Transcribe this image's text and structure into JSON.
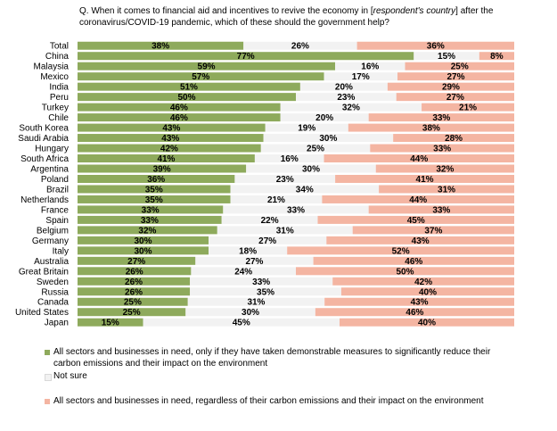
{
  "question": {
    "prefix": "Q. When it comes to financial aid and incentives to revive the economy in [",
    "italic": "respondent's country",
    "suffix": "] after the coronavirus/COVID-19 pandemic, which of these should the government help?"
  },
  "colors": {
    "conditional": "#8eaa5c",
    "not_sure": "#f2f2f2",
    "regardless": "#f4b5a2"
  },
  "chart_data": {
    "type": "bar",
    "orientation": "horizontal",
    "stacked": true,
    "categories": [
      "Total",
      "China",
      "Malaysia",
      "Mexico",
      "India",
      "Peru",
      "Turkey",
      "Chile",
      "South Korea",
      "Saudi Arabia",
      "Hungary",
      "South Africa",
      "Argentina",
      "Poland",
      "Brazil",
      "Netherlands",
      "France",
      "Spain",
      "Belgium",
      "Germany",
      "Italy",
      "Australia",
      "Great Britain",
      "Sweden",
      "Russia",
      "Canada",
      "United States",
      "Japan"
    ],
    "series": [
      {
        "name": "All sectors and businesses in need, only if they have taken demonstrable measures to significantly reduce their carbon emissions and their impact on the environment",
        "values": [
          38,
          77,
          59,
          57,
          51,
          50,
          46,
          46,
          43,
          43,
          42,
          41,
          39,
          36,
          35,
          35,
          33,
          33,
          32,
          30,
          30,
          27,
          26,
          26,
          26,
          25,
          25,
          15
        ]
      },
      {
        "name": "Not sure",
        "values": [
          26,
          15,
          16,
          17,
          20,
          23,
          32,
          20,
          19,
          30,
          25,
          16,
          30,
          23,
          34,
          21,
          33,
          22,
          31,
          27,
          18,
          27,
          24,
          33,
          35,
          31,
          30,
          45
        ]
      },
      {
        "name": "All sectors and businesses in need, regardless of their carbon emissions and their impact on the environment",
        "values": [
          36,
          8,
          25,
          27,
          29,
          27,
          21,
          33,
          38,
          28,
          33,
          44,
          32,
          41,
          31,
          44,
          33,
          45,
          37,
          43,
          52,
          46,
          50,
          42,
          40,
          43,
          46,
          40
        ]
      }
    ],
    "value_suffix": "%"
  }
}
